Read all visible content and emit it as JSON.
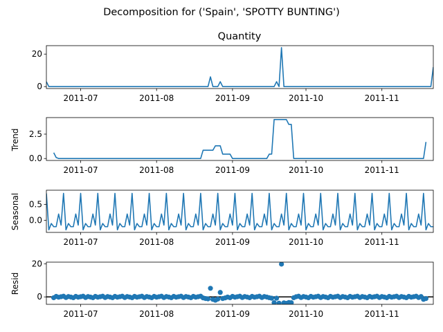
{
  "figure": {
    "suptitle": "Decomposition for ('Spain', 'SPOTTY BUNTING')"
  },
  "colors": {
    "series": "#1f77b4",
    "axis": "#000000",
    "zero_line": "#000000"
  },
  "x_range": [
    "2011-06-17",
    "2011-11-22"
  ],
  "x_ticks": [
    {
      "date": "2011-07-01",
      "label": "2011-07"
    },
    {
      "date": "2011-08-01",
      "label": "2011-08"
    },
    {
      "date": "2011-09-01",
      "label": "2011-09"
    },
    {
      "date": "2011-10-01",
      "label": "2011-10"
    },
    {
      "date": "2011-11-01",
      "label": "2011-11"
    }
  ],
  "chart_data": [
    {
      "type": "line",
      "title": "Quantity",
      "ylabel": "",
      "ylim": [
        -1.2,
        25.2
      ],
      "yticks": [
        0,
        20
      ],
      "points": [
        [
          "2011-06-17",
          3
        ],
        [
          "2011-06-18",
          0
        ],
        [
          "2011-08-22",
          0
        ],
        [
          "2011-08-23",
          6
        ],
        [
          "2011-08-24",
          0
        ],
        [
          "2011-08-26",
          0
        ],
        [
          "2011-08-27",
          3
        ],
        [
          "2011-08-28",
          0
        ],
        [
          "2011-09-18",
          0
        ],
        [
          "2011-09-19",
          3
        ],
        [
          "2011-09-20",
          0
        ],
        [
          "2011-09-21",
          24
        ],
        [
          "2011-09-22",
          0
        ],
        [
          "2011-11-21",
          0
        ],
        [
          "2011-11-22",
          12
        ]
      ]
    },
    {
      "type": "line",
      "title": "",
      "ylabel": "Trend",
      "ylim": [
        -0.2,
        4.2
      ],
      "yticks": [
        0.0,
        2.5
      ],
      "points": [
        [
          "2011-06-20",
          0.6
        ],
        [
          "2011-06-21",
          0.1
        ],
        [
          "2011-06-22",
          0
        ],
        [
          "2011-08-19",
          0
        ],
        [
          "2011-08-20",
          0.85
        ],
        [
          "2011-08-24",
          0.85
        ],
        [
          "2011-08-25",
          1.3
        ],
        [
          "2011-08-27",
          1.3
        ],
        [
          "2011-08-28",
          0.45
        ],
        [
          "2011-08-31",
          0.45
        ],
        [
          "2011-09-01",
          0
        ],
        [
          "2011-09-15",
          0
        ],
        [
          "2011-09-16",
          0.45
        ],
        [
          "2011-09-17",
          0.45
        ],
        [
          "2011-09-18",
          4.0
        ],
        [
          "2011-09-23",
          4.0
        ],
        [
          "2011-09-24",
          3.5
        ],
        [
          "2011-09-25",
          3.5
        ],
        [
          "2011-09-26",
          0
        ],
        [
          "2011-11-18",
          0
        ],
        [
          "2011-11-19",
          1.7
        ]
      ]
    },
    {
      "type": "line",
      "title": "",
      "ylabel": "Seasonal",
      "ylim": [
        -0.38,
        0.95
      ],
      "yticks": [
        0.0,
        0.5
      ],
      "period": 7,
      "weekly_pattern": [
        0.85,
        -0.3,
        -0.1,
        -0.2,
        -0.2,
        0.2,
        -0.15
      ],
      "start": "2011-06-17",
      "end": "2011-11-22"
    },
    {
      "type": "scatter",
      "title": "",
      "ylabel": "Resid",
      "ylim": [
        -4.5,
        21
      ],
      "yticks": [
        0,
        20
      ],
      "zero_line": true,
      "start": "2011-06-20",
      "end": "2011-11-19",
      "baseline_pattern": [
        -0.5,
        0.3,
        -0.2,
        0.1,
        0.4,
        -0.4,
        0.2,
        -0.1
      ],
      "special_points": [
        [
          "2011-08-20",
          -0.6
        ],
        [
          "2011-08-21",
          -1.0
        ],
        [
          "2011-08-22",
          -1.2
        ],
        [
          "2011-08-23",
          5.2
        ],
        [
          "2011-08-24",
          -1.5
        ],
        [
          "2011-08-25",
          -2.0
        ],
        [
          "2011-08-26",
          -1.3
        ],
        [
          "2011-08-27",
          2.7
        ],
        [
          "2011-08-28",
          -1.0
        ],
        [
          "2011-08-29",
          -0.6
        ],
        [
          "2011-09-17",
          -0.8
        ],
        [
          "2011-09-18",
          -3.5
        ],
        [
          "2011-09-19",
          -0.8
        ],
        [
          "2011-09-20",
          -3.8
        ],
        [
          "2011-09-21",
          19.8
        ],
        [
          "2011-09-22",
          -3.6
        ],
        [
          "2011-09-23",
          -3.9
        ],
        [
          "2011-09-24",
          -3.4
        ],
        [
          "2011-09-25",
          -3.5
        ],
        [
          "2011-09-26",
          -0.5
        ],
        [
          "2011-11-18",
          -1.5
        ],
        [
          "2011-11-19",
          -1.0
        ]
      ]
    }
  ]
}
